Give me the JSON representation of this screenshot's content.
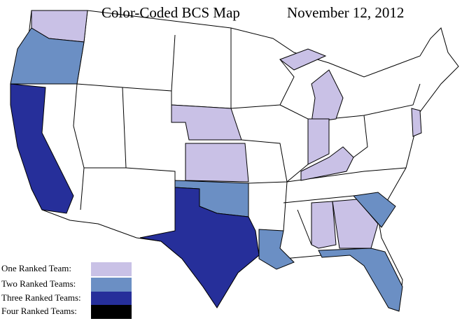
{
  "header": {
    "title": "Color-Coded BCS Map",
    "date": "November 12, 2012"
  },
  "legend": [
    {
      "label": "One Ranked Team:",
      "color": "#c9c1e6"
    },
    {
      "label": "Two Ranked Teams:",
      "color": "#6b8fc4"
    },
    {
      "label": "Three Ranked Teams:",
      "color": "#262f9a"
    },
    {
      "label": "Four Ranked Teams:",
      "color": "#000000"
    }
  ]
}
